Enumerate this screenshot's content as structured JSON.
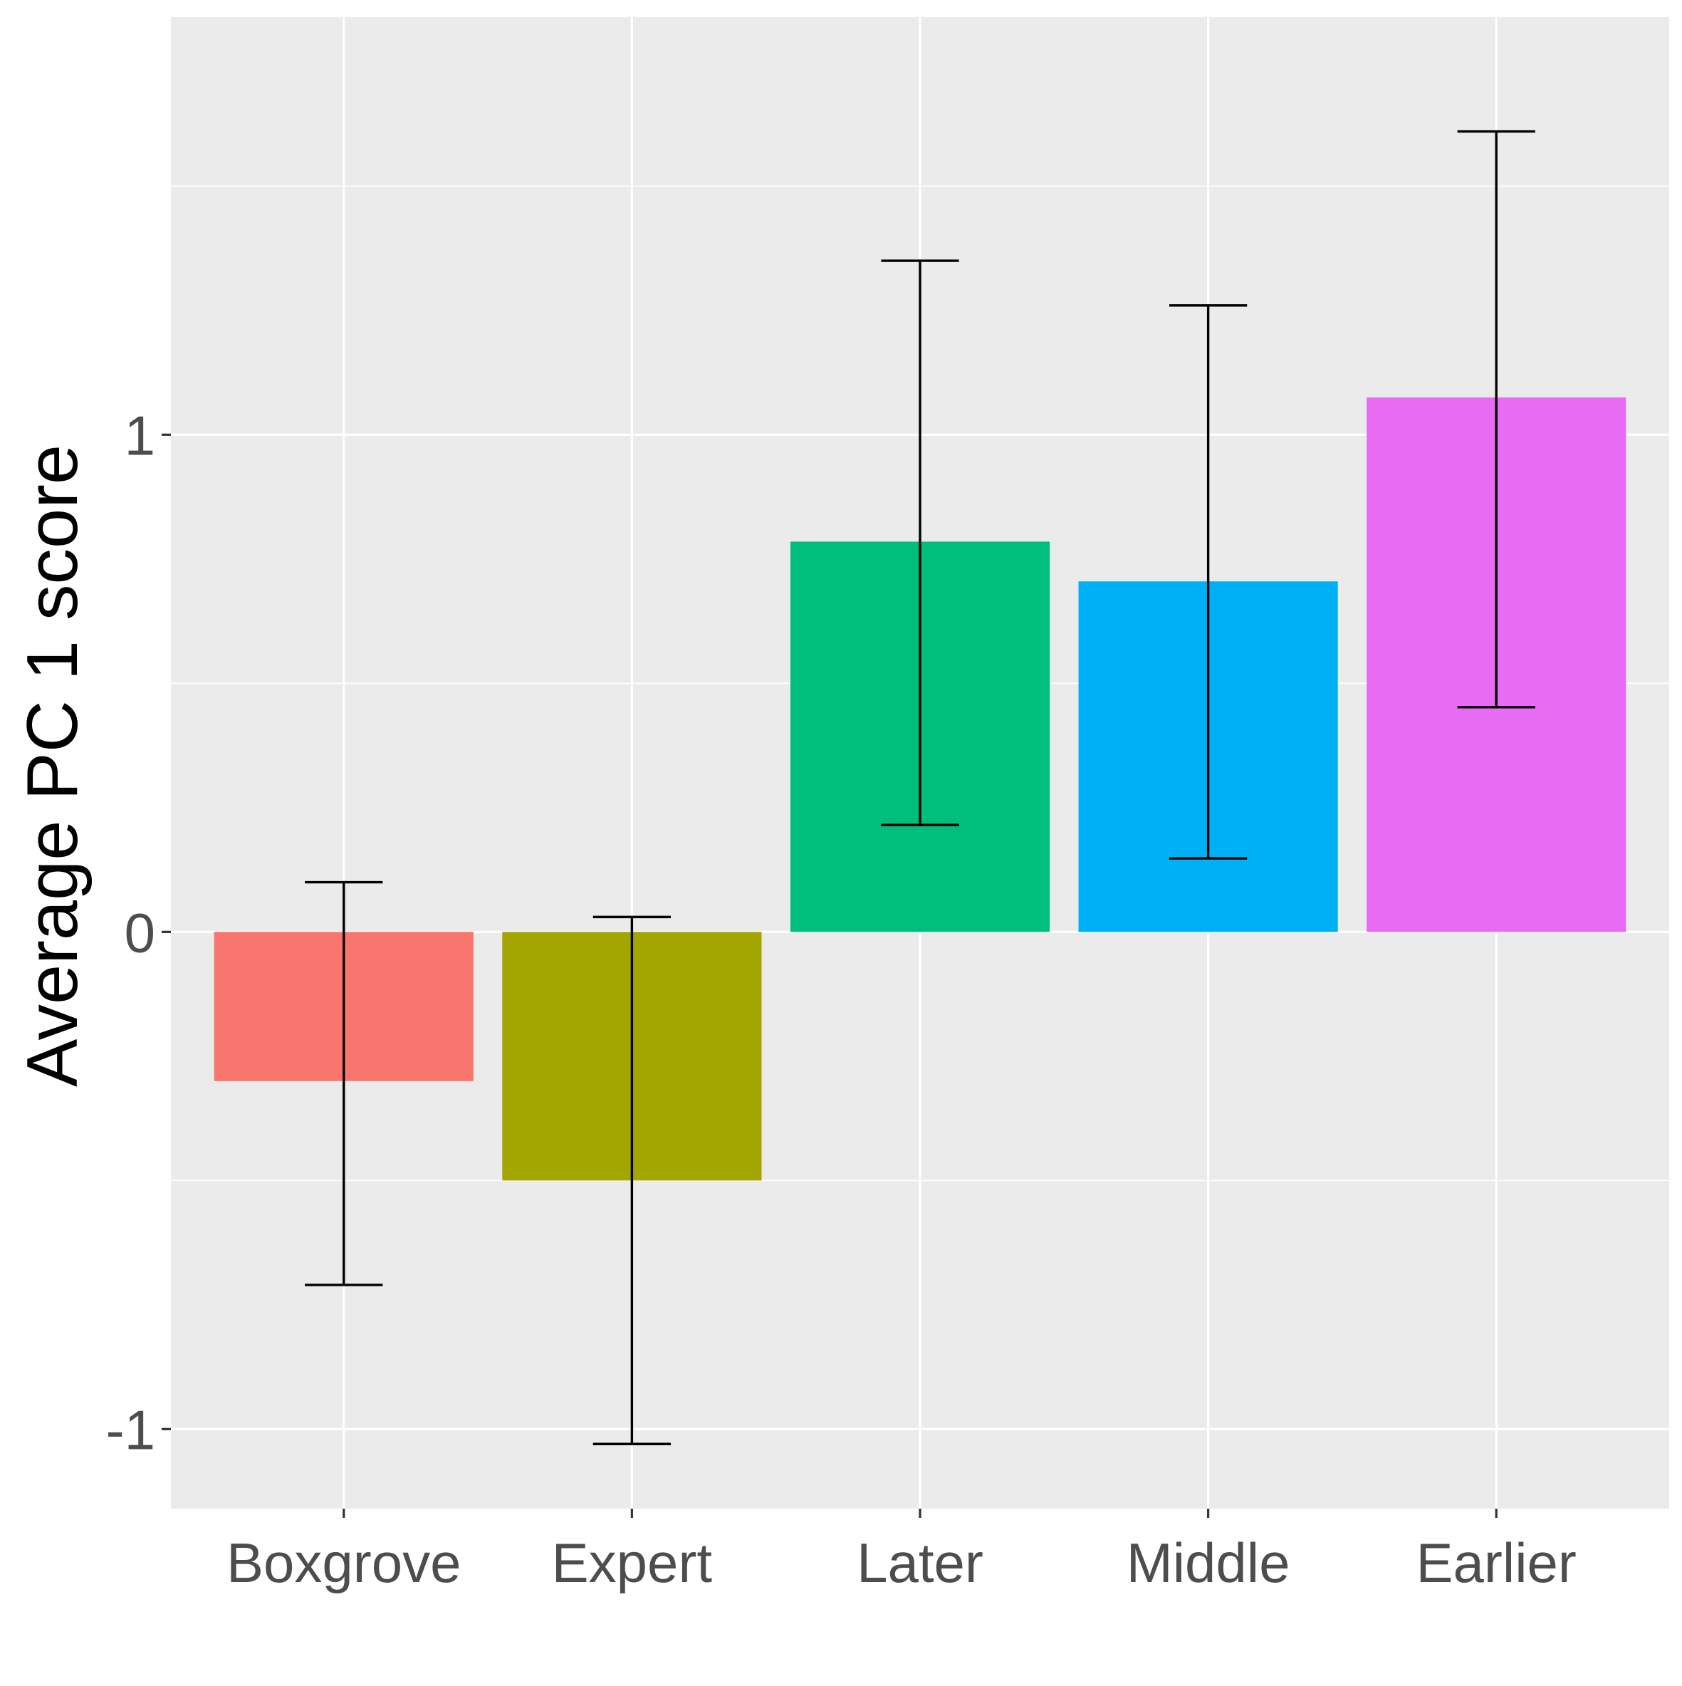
{
  "chart_data": {
    "type": "bar",
    "title": "",
    "xlabel": "",
    "ylabel": "Average PC 1 score",
    "categories": [
      "Boxgrove",
      "Expert",
      "Later",
      "Middle",
      "Earlier"
    ],
    "values": [
      -0.3,
      -0.5,
      0.785,
      0.705,
      1.075
    ],
    "error_low": [
      -0.71,
      -1.03,
      0.215,
      0.148,
      0.452
    ],
    "error_high": [
      0.1,
      0.03,
      1.35,
      1.26,
      1.61
    ],
    "colors": [
      "#F8766D",
      "#A3A500",
      "#00BF7D",
      "#00B0F6",
      "#E76BF3"
    ],
    "yticks": [
      -1,
      0,
      1
    ],
    "ytick_labels": [
      "-1",
      "0",
      "1"
    ],
    "ylim": [
      -1.16,
      1.84
    ],
    "grid": true,
    "legend": "none",
    "panel_background": "#EBEBEB",
    "grid_color": "#FFFFFF"
  }
}
